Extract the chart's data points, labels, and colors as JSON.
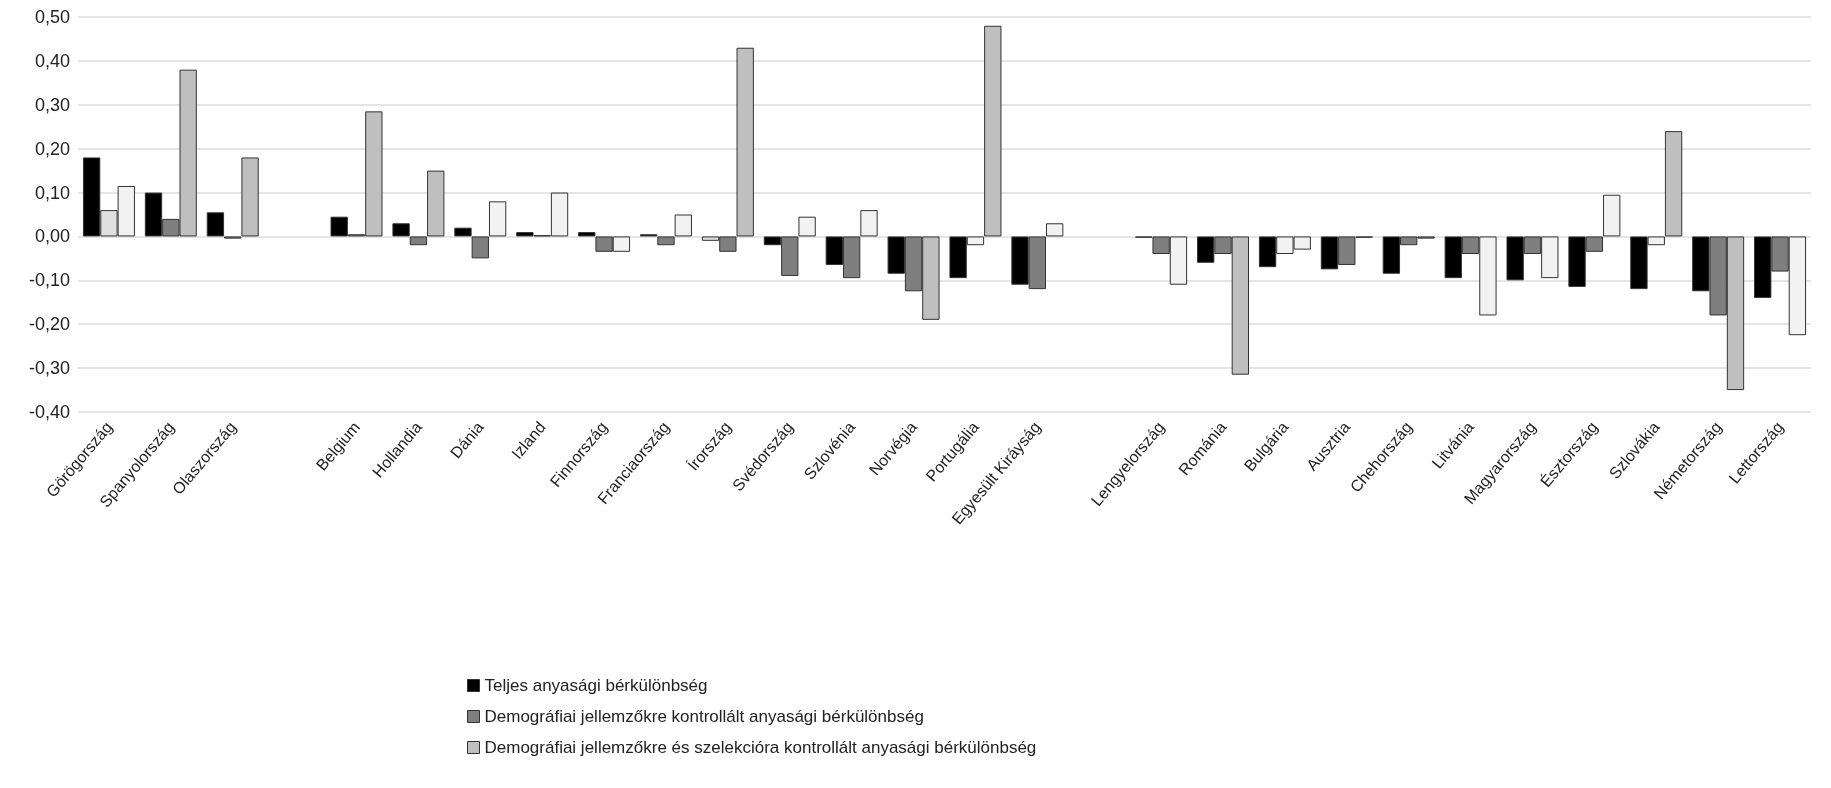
{
  "chart_data": {
    "type": "bar",
    "categories": [
      "Görögország",
      "Spanyolország",
      "Olaszország",
      null,
      "Belgium",
      "Hollandia",
      "Dánia",
      "Izland",
      "Finnország",
      "Franciaország",
      "Írország",
      "Svédország",
      "Szlovénia",
      "Norvégia",
      "Portugália",
      "Egyesült Kiráyság",
      null,
      "Lengyelország",
      "Románia",
      "Bulgária",
      "Ausztria",
      "Chehország",
      "Litvánia",
      "Magyarország",
      "Észtország",
      "Szlovákia",
      "Németország",
      "Lettország"
    ],
    "series": [
      {
        "name": "Teljes anyasági bérkülönbség",
        "color": "#000000",
        "values": [
          0.18,
          0.1,
          0.055,
          null,
          0.045,
          0.03,
          0.02,
          0.01,
          0.01,
          0.005,
          -0.01,
          -0.02,
          -0.065,
          -0.085,
          -0.095,
          -0.11,
          null,
          -0.003,
          -0.06,
          -0.07,
          -0.075,
          -0.085,
          -0.095,
          -0.1,
          -0.115,
          -0.12,
          -0.125,
          -0.14
        ],
        "colors": [
          "#000000",
          "#000000",
          "#000000",
          null,
          "#000000",
          "#000000",
          "#000000",
          "#000000",
          "#000000",
          "#000000",
          "#e0e0e0",
          "#000000",
          "#000000",
          "#000000",
          "#000000",
          "#000000",
          null,
          "#7f7f7f",
          "#000000",
          "#000000",
          "#000000",
          "#000000",
          "#000000",
          "#000000",
          "#000000",
          "#000000",
          "#000000",
          "#000000"
        ]
      },
      {
        "name": "Demográfiai jellemzőkre kontrollált anyasági bérkülönbség",
        "color": "#7f7f7f",
        "values": [
          0.06,
          0.04,
          -0.005,
          null,
          0.005,
          -0.02,
          -0.05,
          0.003,
          -0.035,
          -0.02,
          -0.035,
          -0.09,
          -0.095,
          -0.125,
          -0.02,
          -0.12,
          null,
          -0.04,
          -0.04,
          -0.04,
          -0.065,
          -0.02,
          -0.04,
          -0.04,
          -0.035,
          -0.02,
          -0.18,
          -0.08
        ],
        "colors": [
          "#e0e0e0",
          "#7f7f7f",
          "#7f7f7f",
          null,
          "#7f7f7f",
          "#7f7f7f",
          "#7f7f7f",
          "#7f7f7f",
          "#7f7f7f",
          "#7f7f7f",
          "#7f7f7f",
          "#7f7f7f",
          "#7f7f7f",
          "#7f7f7f",
          "#f2f2f2",
          "#7f7f7f",
          null,
          "#7f7f7f",
          "#7f7f7f",
          "#f2f2f2",
          "#7f7f7f",
          "#7f7f7f",
          "#7f7f7f",
          "#7f7f7f",
          "#7f7f7f",
          "#f2f2f2",
          "#7f7f7f",
          "#7f7f7f"
        ]
      },
      {
        "name": "Demográfiai jellemzőkre és szelekcióra kontrollált anyasági bérkülönbség",
        "color": "#bfbfbf",
        "values": [
          0.115,
          0.38,
          0.18,
          null,
          0.285,
          0.15,
          0.08,
          0.1,
          -0.035,
          0.05,
          0.43,
          0.045,
          0.06,
          -0.19,
          0.48,
          0.03,
          null,
          -0.11,
          -0.315,
          -0.03,
          -0.003,
          -0.005,
          -0.18,
          -0.095,
          0.095,
          0.24,
          -0.35,
          -0.225
        ],
        "colors": [
          "#f2f2f2",
          "#bfbfbf",
          "#bfbfbf",
          null,
          "#bfbfbf",
          "#bfbfbf",
          "#f2f2f2",
          "#f2f2f2",
          "#f2f2f2",
          "#f2f2f2",
          "#bfbfbf",
          "#f2f2f2",
          "#f2f2f2",
          "#bfbfbf",
          "#bfbfbf",
          "#f2f2f2",
          null,
          "#f2f2f2",
          "#bfbfbf",
          "#f2f2f2",
          "#7f7f7f",
          "#7f7f7f",
          "#f2f2f2",
          "#f2f2f2",
          "#f2f2f2",
          "#bfbfbf",
          "#bfbfbf",
          "#f2f2f2"
        ]
      }
    ],
    "ylim": [
      -0.4,
      0.5
    ],
    "yticks": [
      {
        "value": -0.4,
        "label": "-0,40"
      },
      {
        "value": -0.3,
        "label": "-0,30"
      },
      {
        "value": -0.2,
        "label": "-0,20"
      },
      {
        "value": -0.1,
        "label": "-0,10"
      },
      {
        "value": 0,
        "label": "0,00"
      },
      {
        "value": 0.1,
        "label": "0,10"
      },
      {
        "value": 0.2,
        "label": "0,20"
      },
      {
        "value": 0.3,
        "label": "0,30"
      },
      {
        "value": 0.4,
        "label": "0,40"
      },
      {
        "value": 0.5,
        "label": "0,50"
      }
    ],
    "grid": "y",
    "legend": "bottom"
  }
}
